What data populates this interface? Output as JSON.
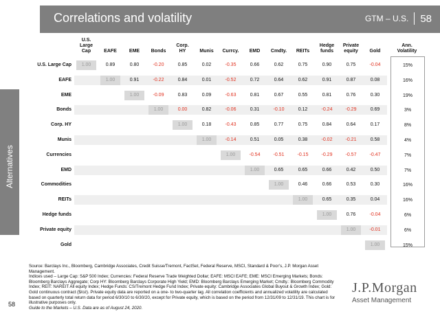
{
  "header": {
    "title": "Correlations and volatility",
    "gtm": "GTM – U.S.",
    "page": "58"
  },
  "side_label": "Alternatives",
  "columns": [
    "U.S.\nLarge\nCap",
    "EAFE",
    "EME",
    "Bonds",
    "Corp.\nHY",
    "Munis",
    "Currcy.",
    "EMD",
    "Cmdty.",
    "REITs",
    "Hedge\nfunds",
    "Private\nequity",
    "Gold"
  ],
  "vol_header": "Ann.\nVolatility",
  "rows": [
    {
      "label": "U.S. Large Cap",
      "values": [
        "1.00",
        "0.89",
        "0.80",
        "-0.20",
        "0.85",
        "0.02",
        "-0.35",
        "0.66",
        "0.62",
        "0.75",
        "0.90",
        "0.75",
        "-0.04"
      ],
      "vol": "15%"
    },
    {
      "label": "EAFE",
      "values": [
        "1.00",
        "0.91",
        "-0.22",
        "0.84",
        "0.01",
        "-0.52",
        "0.72",
        "0.64",
        "0.62",
        "0.91",
        "0.87",
        "0.08"
      ],
      "vol": "16%"
    },
    {
      "label": "EME",
      "values": [
        "1.00",
        "-0.09",
        "0.83",
        "0.09",
        "-0.63",
        "0.81",
        "0.67",
        "0.55",
        "0.81",
        "0.76",
        "0.30"
      ],
      "vol": "19%"
    },
    {
      "label": "Bonds",
      "values": [
        "1.00",
        "0.00",
        "0.82",
        "-0.06",
        "0.31",
        "-0.10",
        "0.12",
        "-0.24",
        "-0.29",
        "0.69"
      ],
      "vol": "3%"
    },
    {
      "label": "Corp. HY",
      "values": [
        "1.00",
        "0.18",
        "-0.43",
        "0.85",
        "0.77",
        "0.75",
        "0.84",
        "0.64",
        "0.17"
      ],
      "vol": "8%"
    },
    {
      "label": "Munis",
      "values": [
        "1.00",
        "-0.14",
        "0.51",
        "0.05",
        "0.38",
        "-0.02",
        "-0.21",
        "0.58"
      ],
      "vol": "4%"
    },
    {
      "label": "Currencies",
      "values": [
        "1.00",
        "-0.54",
        "-0.51",
        "-0.15",
        "-0.29",
        "-0.57",
        "-0.47"
      ],
      "vol": "7%"
    },
    {
      "label": "EMD",
      "values": [
        "1.00",
        "0.65",
        "0.65",
        "0.66",
        "0.42",
        "0.50"
      ],
      "vol": "7%"
    },
    {
      "label": "Commodities",
      "values": [
        "1.00",
        "0.46",
        "0.66",
        "0.53",
        "0.30"
      ],
      "vol": "16%"
    },
    {
      "label": "REITs",
      "values": [
        "1.00",
        "0.65",
        "0.35",
        "0.04"
      ],
      "vol": "16%"
    },
    {
      "label": "Hedge funds",
      "values": [
        "1.00",
        "0.76",
        "-0.04"
      ],
      "vol": "6%"
    },
    {
      "label": "Private equity",
      "values": [
        "1.00",
        "-0.01"
      ],
      "vol": "6%"
    },
    {
      "label": "Gold",
      "values": [
        "1.00"
      ],
      "vol": "15%"
    }
  ],
  "notes": {
    "source": "Source: Barclays Inc., Bloomberg, Cambridge Associates, Credit Suisse/Tremont, FactSet, Federal Reserve, MSCI, Standard & Poor’s, J.P. Morgan Asset Management.",
    "indices": "Indices used – Large Cap: S&P 500 Index; Currencies: Federal Reserve Trade Weighted Dollar; EAFE: MSCI EAFE; EME: MSCI Emerging Markets; Bonds: Bloomberg Barclays Aggregate; Corp HY: Bloomberg Barclays Corporate High Yield; EMD: Bloomberg Barclays Emerging Market; Cmdty.: Bloomberg Commodity Index; REIT: NAREIT All equity Index; Hedge Funds: CS/Tremont Hedge Fund Index; Private equity: Cambridge Associates Global Buyout & Growth Index; Gold: Gold continuous contract ($/oz). Private equity data are reported on a one- to two-quarter lag. All correlation coefficients and annualized volatility are calculated based on quarterly total return data for period 6/30/10 to 6/30/20, except for Private equity, which is based on the period from 12/31/09 to 12/31/19. This chart is for illustrative purposes only.",
    "guide": "Guide to the Markets – U.S. Data are as of August 24, 2020."
  },
  "footer": {
    "page_number": "58",
    "logo_line1": "J.P.Morgan",
    "logo_line2": "Asset Management"
  },
  "colors": {
    "header_bg": "#7f7f7f",
    "negative": "#e0301e",
    "diagonal_bg": "#d9d9d9"
  }
}
